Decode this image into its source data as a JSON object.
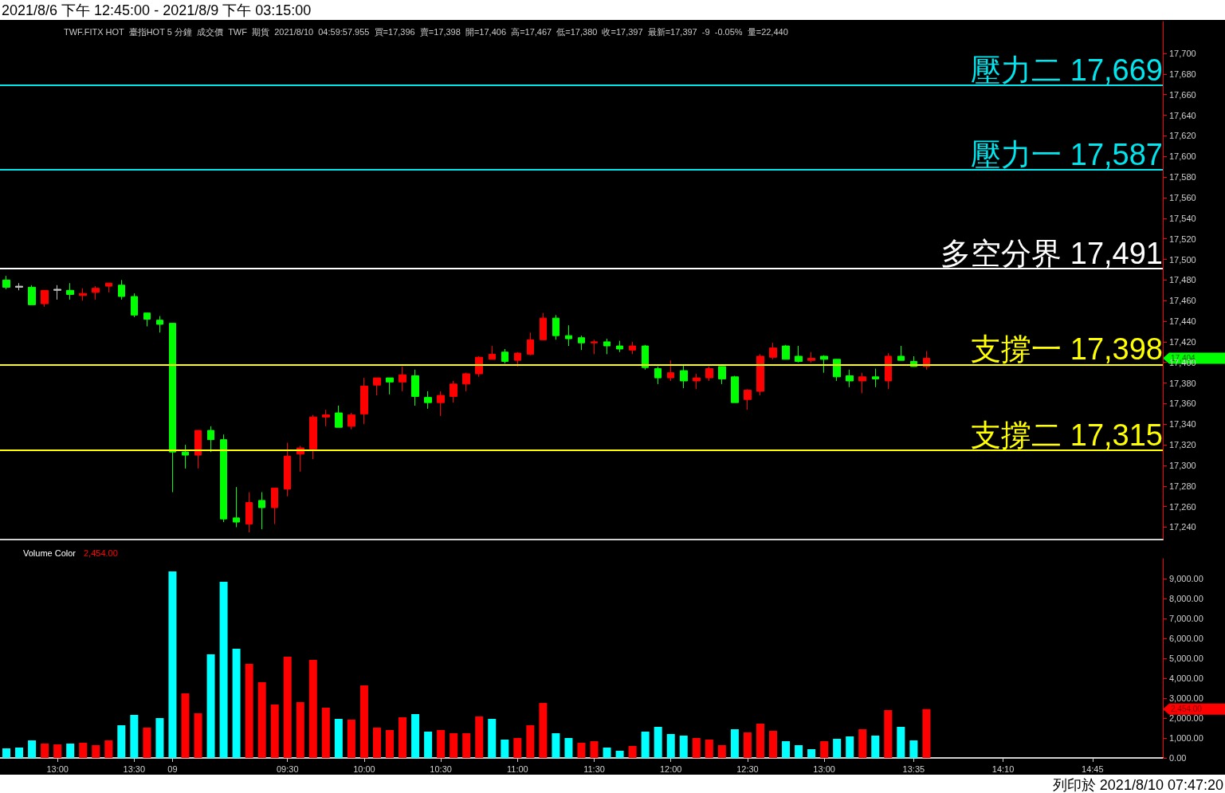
{
  "chart_data": [
    {
      "type": "candlestick",
      "title": "2021/8/6 下午 12:45:00 - 2021/8/9 下午 03:15:00",
      "subtitle": "TWF.FITX HOT  臺指HOT 5 分鐘  成交價  TWF  期貨  2021/8/10  04:59:57.955  買=17,396  賣=17,398  開=17,406  高=17,467  低=17,380  收=17,397  最新=17,397  -9  -0.05%  量=22,440",
      "categories": [
        null,
        null,
        null,
        null,
        null,
        null,
        null,
        null,
        null,
        null,
        null,
        null,
        null,
        null,
        null,
        null,
        null,
        null,
        null,
        null,
        null,
        null,
        null,
        null,
        null,
        null,
        null,
        null,
        null,
        null,
        null,
        null,
        null,
        null,
        null,
        null,
        null,
        null,
        null,
        null,
        null,
        null,
        null,
        null,
        null,
        null,
        null,
        null,
        null,
        null,
        null,
        null,
        null,
        null,
        null,
        null,
        null,
        null,
        null,
        null,
        null,
        null,
        null,
        null,
        null,
        null,
        null,
        null,
        null,
        null,
        null,
        null,
        null,
        null,
        null,
        null,
        null,
        null,
        null,
        null,
        null,
        null,
        null,
        null,
        null,
        null,
        null,
        null,
        null,
        null,
        null
      ],
      "ohlc": [
        [
          17480,
          17484,
          17471,
          17473
        ],
        [
          17473,
          17477,
          17470,
          17474
        ],
        [
          17473,
          17475,
          17456,
          17456
        ],
        [
          17457,
          17470,
          17454,
          17470
        ],
        [
          17470,
          17475,
          17461,
          17471
        ],
        [
          17470,
          17477,
          17461,
          17466
        ],
        [
          17465,
          17472,
          17460,
          17467
        ],
        [
          17468,
          17474,
          17461,
          17472
        ],
        [
          17474,
          17477,
          17468,
          17477
        ],
        [
          17475,
          17480,
          17461,
          17464
        ],
        [
          17464,
          17467,
          17444,
          17446
        ],
        [
          17448,
          17448,
          17435,
          17442
        ],
        [
          17441,
          17445,
          17429,
          17437
        ],
        [
          17438,
          17438,
          17274,
          17313
        ],
        [
          17313,
          17320,
          17297,
          17310
        ],
        [
          17310,
          17334,
          17297,
          17334
        ],
        [
          17334,
          17338,
          17313,
          17325
        ],
        [
          17325,
          17330,
          17245,
          17248
        ],
        [
          17249,
          17279,
          17240,
          17245
        ],
        [
          17243,
          17274,
          17235,
          17264
        ],
        [
          17266,
          17274,
          17238,
          17259
        ],
        [
          17259,
          17278,
          17243,
          17278
        ],
        [
          17277,
          17322,
          17270,
          17309
        ],
        [
          17311,
          17319,
          17294,
          17317
        ],
        [
          17316,
          17349,
          17306,
          17347
        ],
        [
          17347,
          17354,
          17338,
          17349
        ],
        [
          17351,
          17358,
          17337,
          17337
        ],
        [
          17338,
          17351,
          17335,
          17349
        ],
        [
          17350,
          17385,
          17340,
          17377
        ],
        [
          17378,
          17385,
          17368,
          17385
        ],
        [
          17385,
          17385,
          17369,
          17381
        ],
        [
          17381,
          17396,
          17372,
          17388
        ],
        [
          17387,
          17393,
          17358,
          17367
        ],
        [
          17366,
          17372,
          17355,
          17361
        ],
        [
          17361,
          17372,
          17348,
          17368
        ],
        [
          17367,
          17382,
          17361,
          17379
        ],
        [
          17379,
          17390,
          17372,
          17389
        ],
        [
          17389,
          17406,
          17386,
          17405
        ],
        [
          17403,
          17416,
          17403,
          17408
        ],
        [
          17410,
          17413,
          17399,
          17401
        ],
        [
          17402,
          17410,
          17396,
          17409
        ],
        [
          17408,
          17429,
          17407,
          17422
        ],
        [
          17422,
          17448,
          17422,
          17443
        ],
        [
          17443,
          17446,
          17422,
          17426
        ],
        [
          17426,
          17436,
          17416,
          17423
        ],
        [
          17424,
          17426,
          17412,
          17419
        ],
        [
          17419,
          17422,
          17408,
          17420
        ],
        [
          17420,
          17423,
          17408,
          17416
        ],
        [
          17416,
          17421,
          17410,
          17413
        ],
        [
          17412,
          17420,
          17408,
          17416
        ],
        [
          17416,
          17417,
          17393,
          17395
        ],
        [
          17394,
          17396,
          17379,
          17385
        ],
        [
          17385,
          17402,
          17382,
          17390
        ],
        [
          17392,
          17398,
          17375,
          17382
        ],
        [
          17382,
          17389,
          17374,
          17385
        ],
        [
          17385,
          17396,
          17382,
          17394
        ],
        [
          17396,
          17396,
          17379,
          17384
        ],
        [
          17386,
          17387,
          17361,
          17361
        ],
        [
          17364,
          17374,
          17354,
          17373
        ],
        [
          17372,
          17408,
          17368,
          17406
        ],
        [
          17405,
          17419,
          17403,
          17414
        ],
        [
          17416,
          17417,
          17403,
          17403
        ],
        [
          17406,
          17416,
          17400,
          17401
        ],
        [
          17402,
          17410,
          17400,
          17404
        ],
        [
          17406,
          17407,
          17390,
          17403
        ],
        [
          17403,
          17403,
          17382,
          17386
        ],
        [
          17387,
          17393,
          17376,
          17382
        ],
        [
          17382,
          17390,
          17370,
          17386
        ],
        [
          17386,
          17394,
          17376,
          17384
        ],
        [
          17382,
          17409,
          17374,
          17406
        ],
        [
          17406,
          17416,
          17402,
          17402
        ],
        [
          17401,
          17406,
          17396,
          17396
        ],
        [
          17396,
          17411,
          17393,
          17404
        ],
        null,
        null,
        null,
        null,
        null,
        null,
        null,
        null,
        null,
        null,
        null,
        null,
        null,
        null,
        null,
        null,
        null,
        null
      ],
      "colors": [
        "#00ff00",
        "#c0c0c0",
        "#00ff00",
        "#ff0000",
        "#c0c0c0",
        "#00ff00",
        "#ff0000",
        "#ff0000",
        "#ff0000",
        "#00ff00",
        "#00ff00",
        "#00ff00",
        "#00ff00",
        "#00ff00",
        "#00ff00",
        "#ff0000",
        "#00ff00",
        "#00ff00",
        "#00ff00",
        "#ff0000",
        "#00ff00",
        "#ff0000",
        "#ff0000",
        "#ff0000",
        "#ff0000",
        "#ff0000",
        "#00ff00",
        "#ff0000",
        "#ff0000",
        "#ff0000",
        "#00ff00",
        "#ff0000",
        "#00ff00",
        "#00ff00",
        "#ff0000",
        "#ff0000",
        "#ff0000",
        "#ff0000",
        "#ff0000",
        "#00ff00",
        "#ff0000",
        "#ff0000",
        "#ff0000",
        "#00ff00",
        "#00ff00",
        "#00ff00",
        "#ff0000",
        "#00ff00",
        "#00ff00",
        "#ff0000",
        "#00ff00",
        "#00ff00",
        "#ff0000",
        "#00ff00",
        "#ff0000",
        "#ff0000",
        "#00ff00",
        "#00ff00",
        "#ff0000",
        "#ff0000",
        "#ff0000",
        "#00ff00",
        "#00ff00",
        "#ff0000",
        "#00ff00",
        "#00ff00",
        "#00ff00",
        "#ff0000",
        "#00ff00",
        "#ff0000",
        "#00ff00",
        "#00ff00",
        "#ff0000",
        null,
        null,
        null,
        null,
        null,
        null,
        null,
        null,
        null,
        null,
        null,
        null,
        null,
        null,
        null,
        null,
        null,
        null
      ],
      "ylim": [
        17228,
        17731
      ],
      "yticks": [
        {
          "value": 17240,
          "label": "17,240"
        },
        {
          "value": 17260,
          "label": "17,260"
        },
        {
          "value": 17280,
          "label": "17,280"
        },
        {
          "value": 17300,
          "label": "17,300"
        },
        {
          "value": 17320,
          "label": "17,320"
        },
        {
          "value": 17340,
          "label": "17,340"
        },
        {
          "value": 17360,
          "label": "17,360"
        },
        {
          "value": 17380,
          "label": "17,380"
        },
        {
          "value": 17400,
          "label": "17,400"
        },
        {
          "value": 17420,
          "label": "17,420"
        },
        {
          "value": 17440,
          "label": "17,440"
        },
        {
          "value": 17460,
          "label": "17,460"
        },
        {
          "value": 17480,
          "label": "17,480"
        },
        {
          "value": 17500,
          "label": "17,500"
        },
        {
          "value": 17520,
          "label": "17,520"
        },
        {
          "value": 17540,
          "label": "17,540"
        },
        {
          "value": 17560,
          "label": "17,560"
        },
        {
          "value": 17580,
          "label": "17,580"
        },
        {
          "value": 17600,
          "label": "17,600"
        },
        {
          "value": 17620,
          "label": "17,620"
        },
        {
          "value": 17640,
          "label": "17,640"
        },
        {
          "value": 17660,
          "label": "17,660"
        },
        {
          "value": 17680,
          "label": "17,680"
        },
        {
          "value": 17700,
          "label": "17,700"
        }
      ],
      "ref_lines": [
        {
          "axis": "y",
          "value": 17669,
          "label": "壓力二 17,669",
          "color": "#00e5ee"
        },
        {
          "axis": "y",
          "value": 17587,
          "label": "壓力一 17,587",
          "color": "#00e5ee"
        },
        {
          "axis": "y",
          "value": 17491,
          "label": "多空分界 17,491",
          "color": "#ffffff"
        },
        {
          "axis": "y",
          "value": 17398,
          "label": "支撐一 17,398",
          "color": "#ffff00"
        },
        {
          "axis": "y",
          "value": 17315,
          "label": "支撐二 17,315",
          "color": "#ffff00"
        }
      ],
      "annotations": [
        "17,404"
      ],
      "tick_labels": "y",
      "grid": false
    },
    {
      "type": "bar",
      "title": "Volume Color",
      "categories": [
        null,
        null,
        null,
        null,
        "13:00",
        null,
        null,
        null,
        null,
        null,
        "13:30",
        null,
        null,
        "09",
        null,
        null,
        null,
        null,
        null,
        null,
        null,
        null,
        "09:30",
        null,
        null,
        null,
        null,
        null,
        "10:00",
        null,
        null,
        null,
        null,
        null,
        "10:30",
        null,
        null,
        null,
        null,
        null,
        "11:00",
        null,
        null,
        null,
        null,
        null,
        "11:30",
        null,
        null,
        null,
        null,
        null,
        "12:00",
        null,
        null,
        null,
        null,
        null,
        "12:30",
        null,
        null,
        null,
        null,
        null,
        "13:00",
        null,
        null,
        null,
        null,
        null,
        null,
        "13:35",
        null,
        null,
        null,
        null,
        null,
        null,
        "14:10",
        null,
        null,
        null,
        null,
        null,
        null,
        "14:45",
        null,
        null,
        null,
        null,
        null
      ],
      "values": [
        480,
        520,
        880,
        720,
        680,
        720,
        760,
        640,
        880,
        1640,
        2160,
        1520,
        2000,
        9360,
        3240,
        2240,
        5200,
        8840,
        5480,
        4720,
        3800,
        2680,
        5080,
        2800,
        4920,
        2520,
        1960,
        1920,
        3640,
        1520,
        1400,
        2040,
        2200,
        1320,
        1400,
        1240,
        1240,
        2080,
        1960,
        920,
        1000,
        1640,
        2760,
        1240,
        1000,
        760,
        840,
        520,
        360,
        600,
        1320,
        1560,
        1200,
        1120,
        1000,
        920,
        640,
        1440,
        1280,
        1720,
        1360,
        840,
        640,
        440,
        840,
        960,
        1080,
        1440,
        1120,
        2400,
        1560,
        880,
        2454,
        null,
        null,
        null,
        null,
        null,
        null,
        null,
        null,
        null,
        null,
        null,
        null,
        null,
        null,
        null,
        null,
        null,
        null
      ],
      "colors": [
        "#00ffff",
        "#00ffff",
        "#00ffff",
        "#ff0000",
        "#ff0000",
        "#00ffff",
        "#ff0000",
        "#ff0000",
        "#ff0000",
        "#00ffff",
        "#00ffff",
        "#ff0000",
        "#00ffff",
        "#00ffff",
        "#ff0000",
        "#ff0000",
        "#00ffff",
        "#00ffff",
        "#00ffff",
        "#ff0000",
        "#ff0000",
        "#ff0000",
        "#ff0000",
        "#ff0000",
        "#ff0000",
        "#ff0000",
        "#00ffff",
        "#ff0000",
        "#ff0000",
        "#ff0000",
        "#ff0000",
        "#ff0000",
        "#00ffff",
        "#00ffff",
        "#ff0000",
        "#ff0000",
        "#ff0000",
        "#ff0000",
        "#00ffff",
        "#00ffff",
        "#ff0000",
        "#ff0000",
        "#ff0000",
        "#00ffff",
        "#00ffff",
        "#ff0000",
        "#ff0000",
        "#00ffff",
        "#00ffff",
        "#ff0000",
        "#00ffff",
        "#00ffff",
        "#00ffff",
        "#00ffff",
        "#ff0000",
        "#ff0000",
        "#ff0000",
        "#00ffff",
        "#ff0000",
        "#ff0000",
        "#ff0000",
        "#00ffff",
        "#00ffff",
        "#00ffff",
        "#ff0000",
        "#00ffff",
        "#00ffff",
        "#ff0000",
        "#00ffff",
        "#ff0000",
        "#00ffff",
        "#00ffff",
        "#ff0000",
        null,
        null,
        null,
        null,
        null,
        null,
        null,
        null,
        null,
        null,
        null,
        null,
        null,
        null,
        null,
        null,
        null,
        null
      ],
      "ylim": [
        0,
        10000
      ],
      "yticks": [
        {
          "value": 0,
          "label": "0.00"
        },
        {
          "value": 1000,
          "label": "1,000.00"
        },
        {
          "value": 2000,
          "label": "2,000.00"
        },
        {
          "value": 3000,
          "label": "3,000.00"
        },
        {
          "value": 4000,
          "label": "4,000.00"
        },
        {
          "value": 5000,
          "label": "5,000.00"
        },
        {
          "value": 6000,
          "label": "6,000.00"
        },
        {
          "value": 7000,
          "label": "7,000.00"
        },
        {
          "value": 8000,
          "label": "8,000.00"
        },
        {
          "value": 9000,
          "label": "9,000.00"
        }
      ],
      "annotations": [
        "2,454.00",
        "2,454.00",
        "列印於 2021/8/10 07:47:20"
      ],
      "grid": false
    }
  ]
}
